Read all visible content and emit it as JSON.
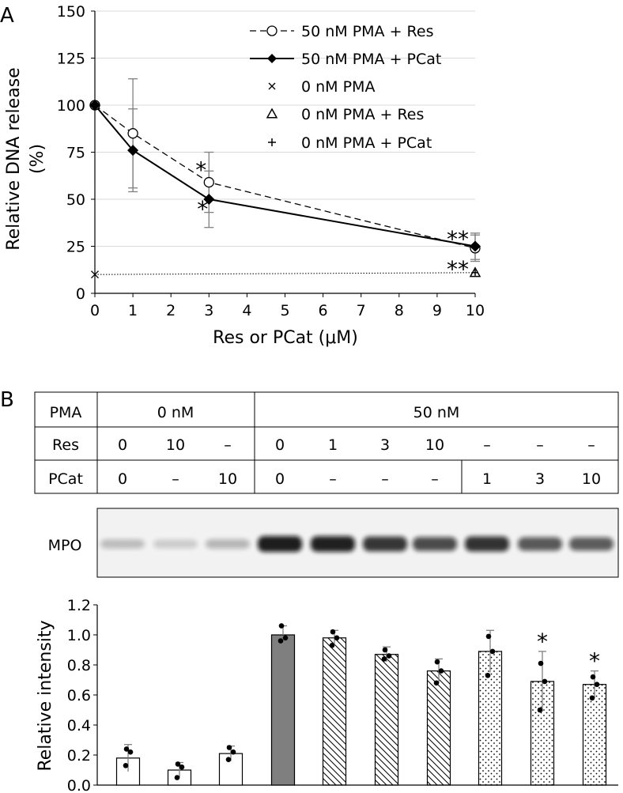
{
  "panel_a": {
    "label": "A",
    "chart_data": {
      "type": "line",
      "xlabel": "Res or PCat (μM)",
      "ylabel_line1": "Relative DNA release",
      "ylabel_line2": "(%)",
      "xlim": [
        0,
        10
      ],
      "ylim": [
        0,
        150
      ],
      "xticks": [
        "0",
        "1",
        "2",
        "3",
        "4",
        "5",
        "6",
        "7",
        "8",
        "9",
        "10"
      ],
      "yticks": [
        "0",
        "25",
        "50",
        "75",
        "100",
        "125",
        "150"
      ],
      "grid": "horizontal",
      "legend_position": "top-right",
      "series": [
        {
          "name": "50 nM PMA + Res",
          "marker": "open-circle",
          "line": "dashed",
          "x": [
            0,
            1,
            3,
            10
          ],
          "y": [
            100,
            85,
            59,
            24
          ],
          "err": [
            0,
            29,
            16,
            7
          ]
        },
        {
          "name": "50 nM PMA + PCat",
          "marker": "filled-diamond",
          "line": "solid",
          "x": [
            0,
            1,
            3,
            10
          ],
          "y": [
            100,
            76,
            50,
            25
          ],
          "err": [
            0,
            22,
            15,
            7
          ]
        },
        {
          "name": "0 nM PMA",
          "marker": "x",
          "line": "none",
          "x": [
            0
          ],
          "y": [
            10
          ]
        },
        {
          "name": "0 nM PMA + Res",
          "marker": "triangle",
          "line": "none",
          "x": [
            10
          ],
          "y": [
            11
          ]
        },
        {
          "name": "0 nM PMA + PCat",
          "marker": "plus",
          "line": "none",
          "x": [
            10
          ],
          "y": [
            11
          ]
        }
      ],
      "reference_line": {
        "style": "dotted",
        "from": [
          0,
          10
        ],
        "to": [
          10,
          11
        ]
      },
      "annotations": [
        {
          "text": "*",
          "x": 3,
          "near": "Res"
        },
        {
          "text": "*",
          "x": 3,
          "near": "PCat"
        },
        {
          "text": "**",
          "x": 10,
          "near": "above"
        },
        {
          "text": "**",
          "x": 10,
          "near": "below"
        }
      ]
    }
  },
  "panel_b": {
    "label": "B",
    "table": {
      "row_labels": [
        "PMA",
        "Res",
        "PCat"
      ],
      "pma_groups": [
        "0 nM",
        "50 nM"
      ],
      "res": [
        "0",
        "10",
        "–",
        "0",
        "1",
        "3",
        "10",
        "–",
        "–",
        "–"
      ],
      "pcat": [
        "0",
        "–",
        "10",
        "0",
        "–",
        "–",
        "–",
        "1",
        "3",
        "10"
      ]
    },
    "blot": {
      "label": "MPO",
      "band_intensities": [
        0.18,
        0.1,
        0.21,
        1.0,
        0.98,
        0.87,
        0.76,
        0.89,
        0.69,
        0.67
      ]
    },
    "chart_data": {
      "type": "bar",
      "ylabel": "Relative intensity",
      "ylim": [
        0,
        1.2
      ],
      "yticks": [
        "0.0",
        "0.2",
        "0.4",
        "0.6",
        "0.8",
        "1.0",
        "1.2"
      ],
      "categories": [
        "0/0",
        "Res 10",
        "PCat 10",
        "50/0",
        "Res 1",
        "Res 3",
        "Res 10",
        "PCat 1",
        "PCat 3",
        "PCat 10"
      ],
      "values": [
        0.18,
        0.1,
        0.21,
        1.0,
        0.98,
        0.87,
        0.76,
        0.89,
        0.69,
        0.67
      ],
      "errors": [
        0.09,
        0.05,
        0.05,
        0.06,
        0.05,
        0.05,
        0.08,
        0.14,
        0.2,
        0.09
      ],
      "fills": [
        "white",
        "white",
        "white",
        "gray",
        "hatch",
        "hatch",
        "hatch",
        "dots",
        "dots",
        "dots"
      ],
      "points": [
        [
          0.13,
          0.22,
          0.24
        ],
        [
          0.05,
          0.12,
          0.14
        ],
        [
          0.17,
          0.22,
          0.25
        ],
        [
          0.96,
          0.98,
          1.06
        ],
        [
          0.93,
          0.98,
          1.02
        ],
        [
          0.84,
          0.86,
          0.9
        ],
        [
          0.68,
          0.76,
          0.82
        ],
        [
          0.73,
          0.89,
          0.99
        ],
        [
          0.5,
          0.69,
          0.81
        ],
        [
          0.58,
          0.67,
          0.72
        ]
      ],
      "significance": [
        "",
        "",
        "",
        "",
        "",
        "",
        "",
        "",
        "*",
        "*"
      ]
    }
  },
  "colors": {
    "axis": "#000000",
    "grid": "#d9d9d9",
    "err": "#808080",
    "gray_bar": "#7f7f7f",
    "blot_bg": "#f2f2f2"
  }
}
